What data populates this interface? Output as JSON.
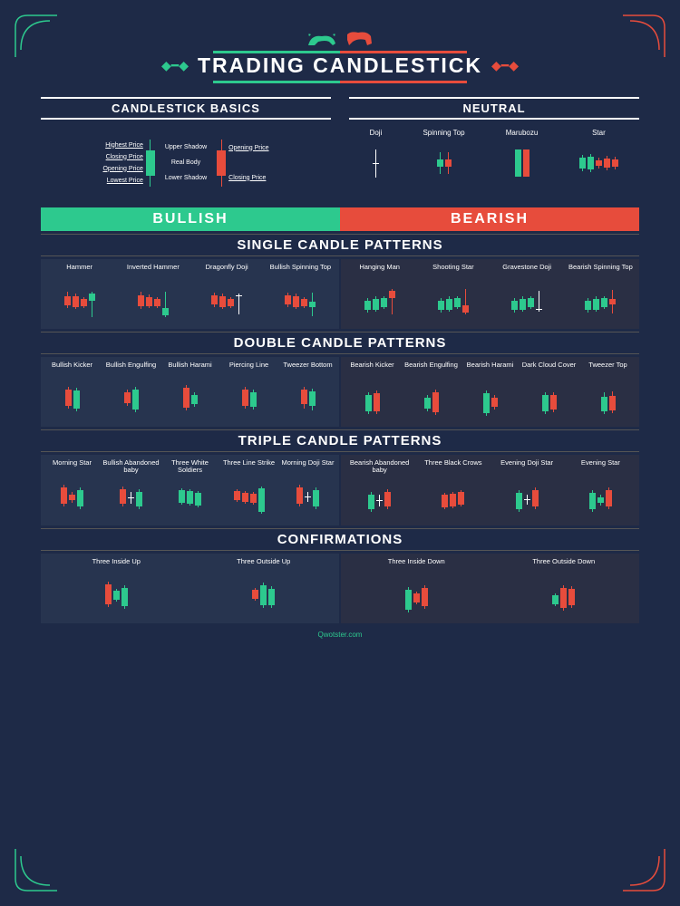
{
  "colors": {
    "bg": "#1e2a47",
    "green": "#2dc98e",
    "red": "#e74c3c",
    "panel": "#27344f",
    "panel2": "#2a2f44"
  },
  "title": "TRADING CANDLESTICK",
  "basics": {
    "title": "CANDLESTICK BASICS",
    "labels": {
      "highest": "Highest Price",
      "closing": "Closing Price",
      "opening": "Opening Price",
      "lowest": "Lowest Price",
      "upper": "Upper Shadow",
      "real": "Real Body",
      "lower": "Lower Shadow",
      "open2": "Opening Price",
      "close2": "Closing Price"
    }
  },
  "neutral": {
    "title": "NEUTRAL",
    "items": [
      "Doji",
      "Spinning Top",
      "Marubozu",
      "Star"
    ]
  },
  "bullish": "BULLISH",
  "bearish": "BEARISH",
  "sections": {
    "single": {
      "title": "SINGLE CANDLE PATTERNS",
      "bull": [
        {
          "n": "Hammer",
          "c": [
            {
              "t": "r",
              "u": 5,
              "b": 10,
              "l": 3
            },
            {
              "t": "r",
              "u": 3,
              "b": 12,
              "l": 2
            },
            {
              "t": "r",
              "u": 2,
              "b": 8,
              "l": 2
            },
            {
              "t": "g",
              "u": 2,
              "b": 8,
              "l": 18
            }
          ]
        },
        {
          "n": "Inverted Hammer",
          "c": [
            {
              "t": "r",
              "u": 4,
              "b": 12,
              "l": 3
            },
            {
              "t": "r",
              "u": 3,
              "b": 10,
              "l": 2
            },
            {
              "t": "r",
              "u": 2,
              "b": 8,
              "l": 2
            },
            {
              "t": "g",
              "u": 18,
              "b": 8,
              "l": 2
            }
          ]
        },
        {
          "n": "Dragonfly Doji",
          "c": [
            {
              "t": "r",
              "u": 3,
              "b": 10,
              "l": 3
            },
            {
              "t": "r",
              "u": 3,
              "b": 12,
              "l": 2
            },
            {
              "t": "r",
              "u": 2,
              "b": 8,
              "l": 2
            },
            {
              "t": "d",
              "u": 2,
              "b": 1,
              "l": 20
            }
          ]
        },
        {
          "n": "Bullish Spinning Top",
          "c": [
            {
              "t": "r",
              "u": 3,
              "b": 10,
              "l": 3
            },
            {
              "t": "r",
              "u": 3,
              "b": 12,
              "l": 2
            },
            {
              "t": "r",
              "u": 2,
              "b": 8,
              "l": 2
            },
            {
              "t": "g",
              "u": 10,
              "b": 6,
              "l": 10
            }
          ]
        }
      ],
      "bear": [
        {
          "n": "Hanging Man",
          "c": [
            {
              "t": "g",
              "u": 3,
              "b": 10,
              "l": 3
            },
            {
              "t": "g",
              "u": 3,
              "b": 12,
              "l": 2
            },
            {
              "t": "g",
              "u": 2,
              "b": 10,
              "l": 2
            },
            {
              "t": "r",
              "u": 2,
              "b": 8,
              "l": 18
            }
          ]
        },
        {
          "n": "Shooting Star",
          "c": [
            {
              "t": "g",
              "u": 3,
              "b": 10,
              "l": 3
            },
            {
              "t": "g",
              "u": 3,
              "b": 12,
              "l": 2
            },
            {
              "t": "g",
              "u": 2,
              "b": 10,
              "l": 2
            },
            {
              "t": "r",
              "u": 18,
              "b": 8,
              "l": 2
            }
          ]
        },
        {
          "n": "Gravestone Doji",
          "c": [
            {
              "t": "g",
              "u": 3,
              "b": 10,
              "l": 3
            },
            {
              "t": "g",
              "u": 3,
              "b": 12,
              "l": 2
            },
            {
              "t": "g",
              "u": 2,
              "b": 10,
              "l": 2
            },
            {
              "t": "d",
              "u": 20,
              "b": 1,
              "l": 2
            }
          ]
        },
        {
          "n": "Bearish Spinning Top",
          "c": [
            {
              "t": "g",
              "u": 3,
              "b": 10,
              "l": 3
            },
            {
              "t": "g",
              "u": 3,
              "b": 12,
              "l": 2
            },
            {
              "t": "g",
              "u": 2,
              "b": 10,
              "l": 2
            },
            {
              "t": "r",
              "u": 10,
              "b": 6,
              "l": 10
            }
          ]
        }
      ]
    },
    "double": {
      "title": "DOUBLE CANDLE PATTERNS",
      "bull": [
        {
          "n": "Bullish Kicker",
          "c": [
            {
              "t": "r",
              "u": 3,
              "b": 18,
              "l": 3
            },
            {
              "t": "g",
              "u": 3,
              "b": 20,
              "l": 3
            }
          ]
        },
        {
          "n": "Bullish Engulfing",
          "c": [
            {
              "t": "r",
              "u": 3,
              "b": 12,
              "l": 3
            },
            {
              "t": "g",
              "u": 3,
              "b": 22,
              "l": 3
            }
          ]
        },
        {
          "n": "Bullish Harami",
          "c": [
            {
              "t": "r",
              "u": 3,
              "b": 22,
              "l": 3
            },
            {
              "t": "g",
              "u": 3,
              "b": 10,
              "l": 3
            }
          ]
        },
        {
          "n": "Piercing Line",
          "c": [
            {
              "t": "r",
              "u": 3,
              "b": 18,
              "l": 3
            },
            {
              "t": "g",
              "u": 3,
              "b": 16,
              "l": 3
            }
          ]
        },
        {
          "n": "Tweezer Bottom",
          "c": [
            {
              "t": "r",
              "u": 3,
              "b": 16,
              "l": 5
            },
            {
              "t": "g",
              "u": 3,
              "b": 16,
              "l": 5
            }
          ]
        }
      ],
      "bear": [
        {
          "n": "Bearish Kicker",
          "c": [
            {
              "t": "g",
              "u": 3,
              "b": 18,
              "l": 3
            },
            {
              "t": "r",
              "u": 3,
              "b": 20,
              "l": 3
            }
          ]
        },
        {
          "n": "Bearish Engulfing",
          "c": [
            {
              "t": "g",
              "u": 3,
              "b": 12,
              "l": 3
            },
            {
              "t": "r",
              "u": 3,
              "b": 22,
              "l": 3
            }
          ]
        },
        {
          "n": "Bearish Harami",
          "c": [
            {
              "t": "g",
              "u": 3,
              "b": 22,
              "l": 3
            },
            {
              "t": "r",
              "u": 3,
              "b": 10,
              "l": 3
            }
          ]
        },
        {
          "n": "Dark Cloud Cover",
          "c": [
            {
              "t": "g",
              "u": 3,
              "b": 18,
              "l": 3
            },
            {
              "t": "r",
              "u": 3,
              "b": 16,
              "l": 3
            }
          ]
        },
        {
          "n": "Tweezer Top",
          "c": [
            {
              "t": "g",
              "u": 5,
              "b": 16,
              "l": 3
            },
            {
              "t": "r",
              "u": 5,
              "b": 16,
              "l": 3
            }
          ]
        }
      ]
    },
    "triple": {
      "title": "TRIPLE CANDLE PATTERNS",
      "bull": [
        {
          "n": "Morning Star",
          "c": [
            {
              "t": "r",
              "u": 3,
              "b": 18,
              "l": 3
            },
            {
              "t": "r",
              "u": 3,
              "b": 6,
              "l": 3
            },
            {
              "t": "g",
              "u": 3,
              "b": 18,
              "l": 3
            }
          ]
        },
        {
          "n": "Bullish Abandoned baby",
          "c": [
            {
              "t": "r",
              "u": 3,
              "b": 16,
              "l": 3
            },
            {
              "t": "d",
              "u": 6,
              "b": 1,
              "l": 6
            },
            {
              "t": "g",
              "u": 3,
              "b": 16,
              "l": 3
            }
          ]
        },
        {
          "n": "Three White Soldiers",
          "c": [
            {
              "t": "g",
              "u": 2,
              "b": 14,
              "l": 2
            },
            {
              "t": "g",
              "u": 2,
              "b": 14,
              "l": 2
            },
            {
              "t": "g",
              "u": 2,
              "b": 14,
              "l": 2
            }
          ]
        },
        {
          "n": "Three Line Strike",
          "c": [
            {
              "t": "r",
              "u": 2,
              "b": 10,
              "l": 2
            },
            {
              "t": "r",
              "u": 2,
              "b": 10,
              "l": 2
            },
            {
              "t": "r",
              "u": 2,
              "b": 10,
              "l": 2
            },
            {
              "t": "g",
              "u": 2,
              "b": 26,
              "l": 2
            }
          ]
        },
        {
          "n": "Morning Doji Star",
          "c": [
            {
              "t": "r",
              "u": 3,
              "b": 18,
              "l": 3
            },
            {
              "t": "d",
              "u": 5,
              "b": 1,
              "l": 5
            },
            {
              "t": "g",
              "u": 3,
              "b": 18,
              "l": 3
            }
          ]
        }
      ],
      "bear": [
        {
          "n": "Bearish Abandoned baby",
          "c": [
            {
              "t": "g",
              "u": 3,
              "b": 16,
              "l": 3
            },
            {
              "t": "d",
              "u": 6,
              "b": 1,
              "l": 6
            },
            {
              "t": "r",
              "u": 3,
              "b": 16,
              "l": 3
            }
          ]
        },
        {
          "n": "Three Black Crows",
          "c": [
            {
              "t": "r",
              "u": 2,
              "b": 14,
              "l": 2
            },
            {
              "t": "r",
              "u": 2,
              "b": 14,
              "l": 2
            },
            {
              "t": "r",
              "u": 2,
              "b": 14,
              "l": 2
            }
          ]
        },
        {
          "n": "Evening Doji Star",
          "c": [
            {
              "t": "g",
              "u": 3,
              "b": 18,
              "l": 3
            },
            {
              "t": "d",
              "u": 5,
              "b": 1,
              "l": 5
            },
            {
              "t": "r",
              "u": 3,
              "b": 18,
              "l": 3
            }
          ]
        },
        {
          "n": "Evening Star",
          "c": [
            {
              "t": "g",
              "u": 3,
              "b": 18,
              "l": 3
            },
            {
              "t": "g",
              "u": 3,
              "b": 6,
              "l": 3
            },
            {
              "t": "r",
              "u": 3,
              "b": 18,
              "l": 3
            }
          ]
        }
      ]
    },
    "conf": {
      "title": "CONFIRMATIONS",
      "bull": [
        {
          "n": "Three Inside Up",
          "c": [
            {
              "t": "r",
              "u": 3,
              "b": 22,
              "l": 3
            },
            {
              "t": "g",
              "u": 2,
              "b": 10,
              "l": 2
            },
            {
              "t": "g",
              "u": 3,
              "b": 20,
              "l": 3
            }
          ]
        },
        {
          "n": "Three Outside Up",
          "c": [
            {
              "t": "r",
              "u": 2,
              "b": 10,
              "l": 2
            },
            {
              "t": "g",
              "u": 3,
              "b": 22,
              "l": 3
            },
            {
              "t": "g",
              "u": 3,
              "b": 18,
              "l": 3
            }
          ]
        }
      ],
      "bear": [
        {
          "n": "Three Inside Down",
          "c": [
            {
              "t": "g",
              "u": 3,
              "b": 22,
              "l": 3
            },
            {
              "t": "r",
              "u": 2,
              "b": 10,
              "l": 2
            },
            {
              "t": "r",
              "u": 3,
              "b": 20,
              "l": 3
            }
          ]
        },
        {
          "n": "Three Outside Down",
          "c": [
            {
              "t": "g",
              "u": 2,
              "b": 10,
              "l": 2
            },
            {
              "t": "r",
              "u": 3,
              "b": 22,
              "l": 3
            },
            {
              "t": "r",
              "u": 3,
              "b": 18,
              "l": 3
            }
          ]
        }
      ]
    }
  },
  "footer": "Qwotster.com"
}
